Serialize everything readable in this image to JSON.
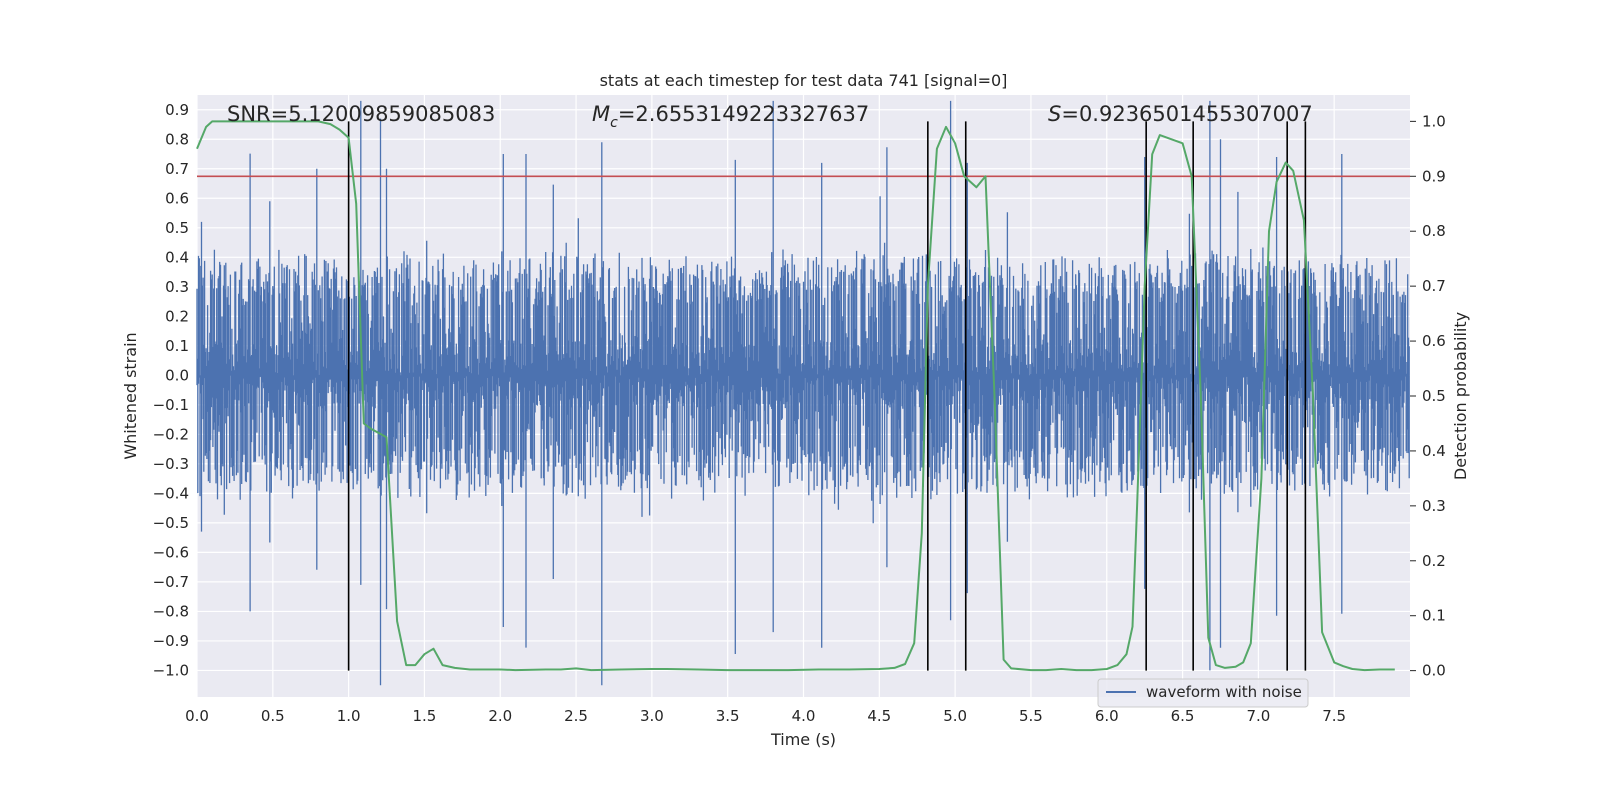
{
  "chart_data": {
    "type": "line",
    "title": "stats at each timestep for test data 741 [signal=0]",
    "xlabel": "Time (s)",
    "ylabel": "Whitened strain",
    "y2label": "Detection probability",
    "xlim": [
      0.0,
      8.0
    ],
    "ylim": [
      -1.09,
      0.95
    ],
    "y2lim": [
      -0.048,
      1.048
    ],
    "xticks": [
      "0.0",
      "0.5",
      "1.0",
      "1.5",
      "2.0",
      "2.5",
      "3.0",
      "3.5",
      "4.0",
      "4.5",
      "5.0",
      "5.5",
      "6.0",
      "6.5",
      "7.0",
      "7.5"
    ],
    "xtick_values": [
      0.0,
      0.5,
      1.0,
      1.5,
      2.0,
      2.5,
      3.0,
      3.5,
      4.0,
      4.5,
      5.0,
      5.5,
      6.0,
      6.5,
      7.0,
      7.5
    ],
    "yticks": [
      "0.9",
      "0.8",
      "0.7",
      "0.6",
      "0.5",
      "0.4",
      "0.3",
      "0.2",
      "0.1",
      "0.0",
      "−0.1",
      "−0.2",
      "−0.3",
      "−0.4",
      "−0.5",
      "−0.6",
      "−0.7",
      "−0.8",
      "−0.9",
      "−1.0"
    ],
    "ytick_values": [
      0.9,
      0.8,
      0.7,
      0.6,
      0.5,
      0.4,
      0.3,
      0.2,
      0.1,
      0.0,
      -0.1,
      -0.2,
      -0.3,
      -0.4,
      -0.5,
      -0.6,
      -0.7,
      -0.8,
      -0.9,
      -1.0
    ],
    "y2ticks": [
      "1.0",
      "0.9",
      "0.8",
      "0.7",
      "0.6",
      "0.5",
      "0.4",
      "0.3",
      "0.2",
      "0.1",
      "0.0"
    ],
    "y2tick_values": [
      1.0,
      0.9,
      0.8,
      0.7,
      0.6,
      0.5,
      0.4,
      0.3,
      0.2,
      0.1,
      0.0
    ],
    "annotations": {
      "snr": "SNR=5.12009859085083",
      "mc_symbol": "M",
      "mc_sub": "c",
      "mc_value": "=2.6553149223327637",
      "s_symbol": "S",
      "s_value": "=0.9236501455307007"
    },
    "legend": {
      "label": "waveform with noise",
      "location": "lower right"
    },
    "threshold": {
      "value": 0.9,
      "axis": "y2",
      "color": "#c44e52"
    },
    "waveform": {
      "name": "waveform with noise",
      "color": "#4c72b0",
      "sample_rate": 200,
      "envelope": 0.29,
      "spikes": [
        {
          "t": 0.03,
          "v": 0.52
        },
        {
          "t": 0.35,
          "v": -0.8
        },
        {
          "t": 0.48,
          "v": 0.59
        },
        {
          "t": 0.79,
          "v": 0.7
        },
        {
          "t": 1.08,
          "v": -0.71
        },
        {
          "t": 1.21,
          "v": 0.87
        },
        {
          "t": 1.25,
          "v": 0.7
        },
        {
          "t": 2.02,
          "v": 0.75
        },
        {
          "t": 2.17,
          "v": 0.75
        },
        {
          "t": 2.67,
          "v": 0.79
        },
        {
          "t": 3.55,
          "v": 0.73
        },
        {
          "t": 3.8,
          "v": -0.87
        },
        {
          "t": 4.12,
          "v": 0.72
        },
        {
          "t": 4.97,
          "v": -0.83
        },
        {
          "t": 5.08,
          "v": 0.72
        },
        {
          "t": 6.25,
          "v": 0.74
        },
        {
          "t": 6.68,
          "v": -1.0
        },
        {
          "t": 6.75,
          "v": 0.8
        },
        {
          "t": 7.12,
          "v": 0.74
        },
        {
          "t": 7.55,
          "v": 0.75
        },
        {
          "t": 2.35,
          "v": -0.69
        },
        {
          "t": 4.55,
          "v": -0.65
        }
      ]
    },
    "detection_probability": {
      "color": "#55a868",
      "x": [
        0.0,
        0.06,
        0.1,
        0.15,
        0.2,
        0.3,
        0.4,
        0.5,
        0.6,
        0.7,
        0.8,
        0.88,
        0.94,
        1.0,
        1.05,
        1.1,
        1.15,
        1.25,
        1.32,
        1.38,
        1.44,
        1.5,
        1.56,
        1.62,
        1.7,
        1.8,
        2.0,
        2.1,
        2.3,
        2.4,
        2.5,
        2.6,
        2.8,
        3.0,
        3.1,
        3.3,
        3.5,
        3.7,
        3.9,
        4.1,
        4.3,
        4.5,
        4.6,
        4.67,
        4.73,
        4.78,
        4.82,
        4.88,
        4.94,
        5.0,
        5.06,
        5.14,
        5.2,
        5.26,
        5.32,
        5.37,
        5.5,
        5.6,
        5.7,
        5.8,
        5.9,
        6.0,
        6.07,
        6.13,
        6.17,
        6.2,
        6.25,
        6.3,
        6.35,
        6.4,
        6.5,
        6.56,
        6.62,
        6.67,
        6.72,
        6.78,
        6.85,
        6.9,
        6.95,
        7.02,
        7.07,
        7.12,
        7.18,
        7.23,
        7.3,
        7.36,
        7.42,
        7.5,
        7.56,
        7.62,
        7.7,
        7.8,
        7.9
      ],
      "y": [
        0.95,
        0.99,
        1.0,
        1.0,
        1.0,
        1.0,
        1.0,
        1.0,
        1.0,
        1.0,
        1.0,
        0.995,
        0.985,
        0.97,
        0.85,
        0.45,
        0.44,
        0.425,
        0.09,
        0.01,
        0.01,
        0.03,
        0.04,
        0.01,
        0.005,
        0.002,
        0.002,
        0.001,
        0.002,
        0.002,
        0.004,
        0.001,
        0.002,
        0.003,
        0.003,
        0.002,
        0.001,
        0.001,
        0.001,
        0.002,
        0.002,
        0.003,
        0.005,
        0.012,
        0.05,
        0.25,
        0.7,
        0.95,
        0.99,
        0.96,
        0.9,
        0.88,
        0.9,
        0.5,
        0.02,
        0.004,
        0.001,
        0.001,
        0.003,
        0.001,
        0.001,
        0.003,
        0.01,
        0.03,
        0.08,
        0.3,
        0.7,
        0.94,
        0.975,
        0.97,
        0.96,
        0.9,
        0.5,
        0.06,
        0.01,
        0.005,
        0.007,
        0.015,
        0.05,
        0.35,
        0.8,
        0.89,
        0.925,
        0.91,
        0.82,
        0.5,
        0.07,
        0.015,
        0.008,
        0.003,
        0.001,
        0.002,
        0.002
      ]
    },
    "vertical_lines": [
      {
        "x": 1.0,
        "top": 1.0
      },
      {
        "x": 4.82,
        "top": 1.0
      },
      {
        "x": 5.07,
        "top": 1.0
      },
      {
        "x": 6.26,
        "top": 1.0
      },
      {
        "x": 6.57,
        "top": 1.0
      },
      {
        "x": 7.19,
        "top": 1.0
      },
      {
        "x": 7.31,
        "top": 1.0
      }
    ]
  }
}
